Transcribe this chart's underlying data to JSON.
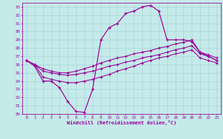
{
  "xlabel": "Windchill (Refroidissement éolien,°C)",
  "xlim": [
    -0.5,
    23.5
  ],
  "ylim": [
    20,
    33.5
  ],
  "xticks": [
    0,
    1,
    2,
    3,
    4,
    5,
    6,
    7,
    8,
    9,
    10,
    11,
    12,
    13,
    14,
    15,
    16,
    17,
    18,
    19,
    20,
    21,
    22,
    23
  ],
  "yticks": [
    20,
    21,
    22,
    23,
    24,
    25,
    26,
    27,
    28,
    29,
    30,
    31,
    32,
    33
  ],
  "background_color": "#c5eaea",
  "grid_color": "#a8d4d4",
  "line_color": "#990099",
  "series": {
    "main": [
      26.5,
      25.8,
      24.0,
      24.0,
      23.2,
      21.5,
      20.3,
      20.2,
      23.0,
      29.0,
      30.5,
      31.0,
      32.2,
      32.5,
      33.0,
      33.2,
      32.5,
      29.0,
      29.0,
      29.0,
      28.8,
      27.5,
      27.0,
      26.5
    ],
    "line2": [
      26.5,
      26.0,
      25.5,
      25.2,
      25.0,
      25.0,
      25.2,
      25.5,
      25.8,
      26.2,
      26.5,
      26.8,
      27.0,
      27.3,
      27.5,
      27.7,
      28.0,
      28.2,
      28.5,
      28.7,
      29.0,
      27.5,
      27.2,
      26.8
    ],
    "line3": [
      26.5,
      26.0,
      25.2,
      25.0,
      24.8,
      24.7,
      24.8,
      25.0,
      25.2,
      25.5,
      25.8,
      26.0,
      26.3,
      26.5,
      26.8,
      27.0,
      27.2,
      27.5,
      27.8,
      28.0,
      28.3,
      27.3,
      27.0,
      26.5
    ],
    "line4": [
      26.5,
      26.0,
      24.5,
      24.2,
      24.0,
      23.8,
      23.8,
      24.0,
      24.2,
      24.5,
      24.8,
      25.2,
      25.5,
      25.8,
      26.2,
      26.5,
      26.8,
      27.0,
      27.3,
      27.5,
      27.8,
      26.8,
      26.5,
      26.2
    ]
  }
}
